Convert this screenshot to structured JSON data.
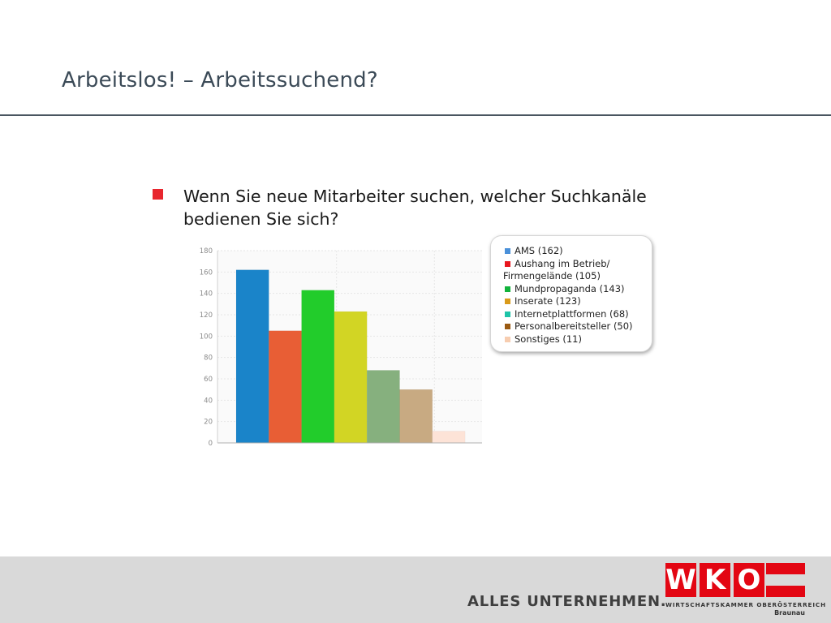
{
  "slide": {
    "title": "Arbeitslos! – Arbeitssuchend?",
    "question": "Wenn Sie neue Mitarbeiter suchen, welcher Suchkanäle bedienen Sie sich?"
  },
  "chart_data": {
    "type": "bar",
    "title": "",
    "xlabel": "",
    "ylabel": "",
    "ylim": [
      0,
      180
    ],
    "yticks": [
      0,
      20,
      40,
      60,
      80,
      100,
      120,
      140,
      160,
      180
    ],
    "grid": true,
    "legend_position": "top-right",
    "categories": [
      "AMS",
      "Aushang im Betrieb/ Firmengelände",
      "Mundpropaganda",
      "Inserate",
      "Internetplattformen",
      "Personalbereitsteller",
      "Sonstiges"
    ],
    "values": [
      162,
      105,
      143,
      123,
      68,
      50,
      11
    ],
    "bar_colors": [
      "#1a84c9",
      "#e85e35",
      "#22cc2b",
      "#d2d524",
      "#86b07e",
      "#c8aa82",
      "#fde3d7"
    ],
    "legend_colors": [
      "#4a90d9",
      "#e8161e",
      "#12b33c",
      "#d99a1a",
      "#1ec4a8",
      "#9a5a12",
      "#f7cdb0"
    ],
    "legend": [
      "AMS (162)",
      "Aushang im Betrieb/ Firmengelände (105)",
      "Mundpropaganda (143)",
      "Inserate (123)",
      "Internetplattformen (68)",
      "Personalbereitsteller (50)",
      "Sonstiges (11)"
    ]
  },
  "footer": {
    "slogan": "ALLES UNTERNEHMEN.",
    "logo_letters": [
      "W",
      "K",
      "O"
    ],
    "logo_subtitle": "WIRTSCHAFTSKAMMER OBERÖSTERREICH",
    "logo_region": "Braunau",
    "logo_color": "#e30613"
  }
}
